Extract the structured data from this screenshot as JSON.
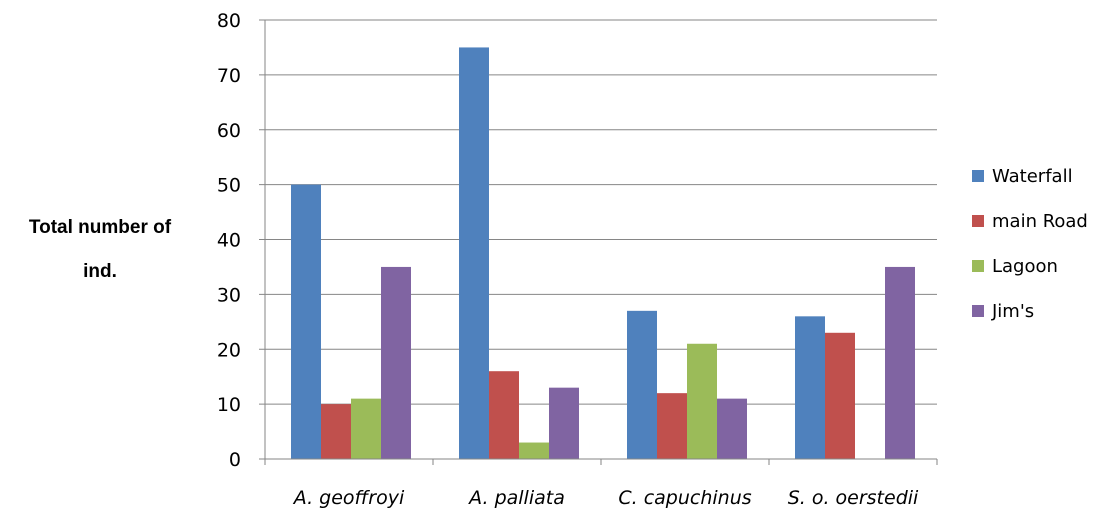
{
  "chart_data": {
    "type": "bar",
    "title": "",
    "xlabel": "",
    "ylabel_lines": [
      "Total number of",
      "ind."
    ],
    "ylim": [
      0,
      80
    ],
    "yticks": [
      0,
      10,
      20,
      30,
      40,
      50,
      60,
      70,
      80
    ],
    "grid": true,
    "legend_position": "right",
    "categories": [
      "A. geoffroyi",
      "A. palliata",
      "C. capuchinus",
      "S. o. oerstedii"
    ],
    "series": [
      {
        "name": "Waterfall",
        "color": "#4F81BD",
        "values": [
          50,
          75,
          27,
          26
        ]
      },
      {
        "name": "main Road",
        "color": "#C0504D",
        "values": [
          10,
          16,
          12,
          23
        ]
      },
      {
        "name": "Lagoon",
        "color": "#9BBB59",
        "values": [
          11,
          3,
          21,
          0
        ]
      },
      {
        "name": "Jim's",
        "color": "#8064A2",
        "values": [
          35,
          13,
          11,
          35
        ]
      }
    ]
  }
}
